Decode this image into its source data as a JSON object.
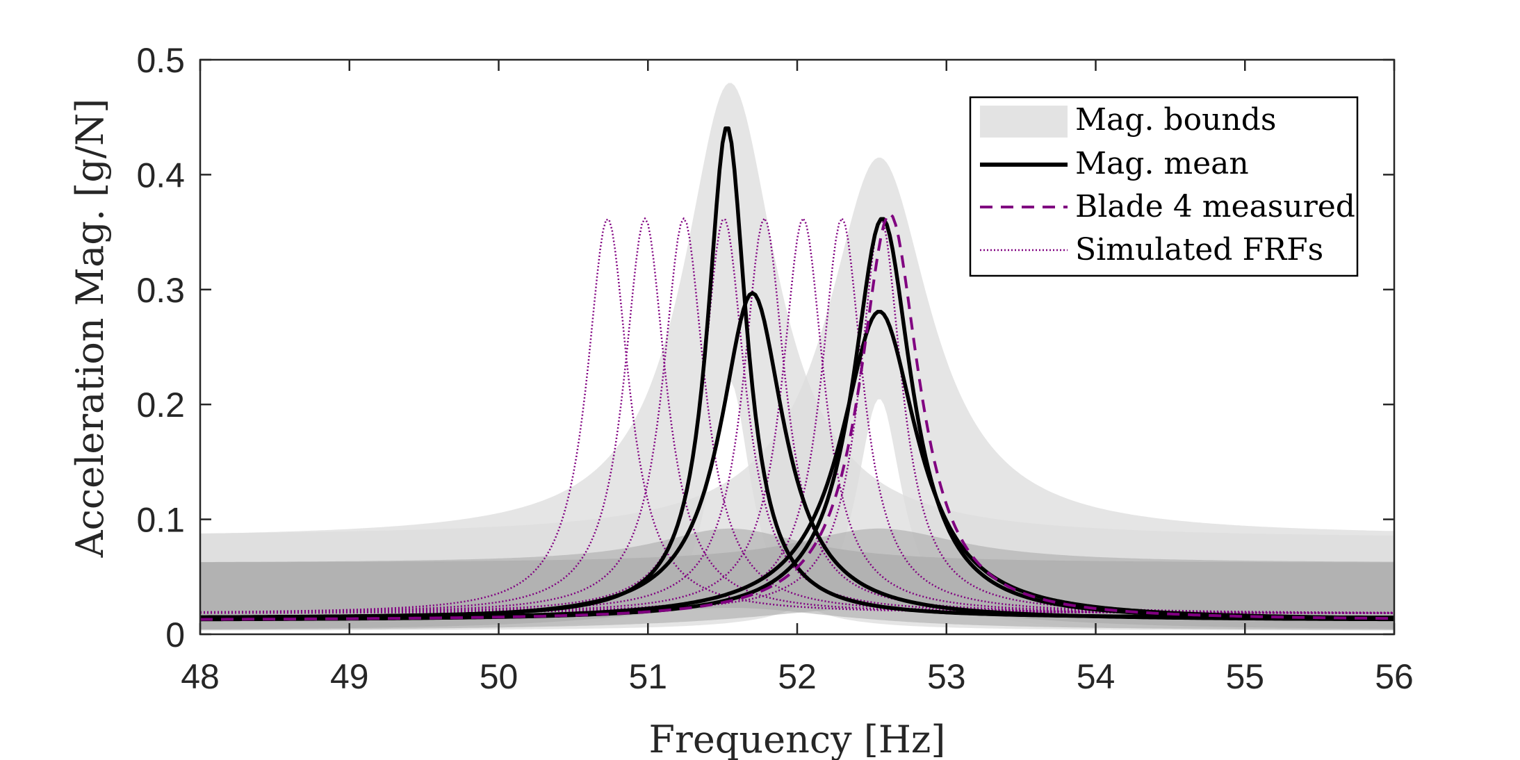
{
  "chart_data": {
    "type": "line",
    "xlabel": "Frequency [Hz]",
    "ylabel": "Acceleration Mag. [g/N]",
    "xlim": [
      48,
      56
    ],
    "ylim": [
      0,
      0.5
    ],
    "xticks": [
      48,
      49,
      50,
      51,
      52,
      53,
      54,
      55,
      56
    ],
    "yticks": [
      0,
      0.1,
      0.2,
      0.3,
      0.4,
      0.5
    ],
    "ytick_labels": [
      "0",
      "0.1",
      "0.2",
      "0.3",
      "0.4",
      "0.5"
    ],
    "legend": {
      "position": "top-right",
      "entries": [
        {
          "label": "Mag. bounds",
          "style": "patch",
          "color": "#d9d9d9"
        },
        {
          "label": "Mag. mean",
          "style": "solid",
          "color": "#000000"
        },
        {
          "label": "Blade 4 measured",
          "style": "dashed",
          "color": "#800080"
        },
        {
          "label": "Simulated FRFs",
          "style": "dotted",
          "color": "#800080"
        }
      ]
    },
    "colors": {
      "bounds_light": "#dcdcdc",
      "bounds_dark": "#a6a6a6",
      "mean": "#000000",
      "measured": "#800080",
      "simulated": "#800080"
    },
    "bounds": [
      {
        "name": "mode 1 outer",
        "lower_floor": 0.003,
        "upper_floor": 0.083,
        "peak_freq": 51.55,
        "upper_peak": 0.48,
        "lower_peak": 0.22,
        "width": 0.38
      },
      {
        "name": "mode 2 outer",
        "lower_floor": 0.003,
        "upper_floor": 0.085,
        "peak_freq": 52.55,
        "upper_peak": 0.415,
        "lower_peak": 0.205,
        "width": 0.42
      }
    ],
    "series": [
      {
        "name": "Mag. mean (mode 1, high)",
        "kind": "mean",
        "f0": 51.53,
        "peak": 0.442,
        "gamma": 0.16,
        "floor": 0.014
      },
      {
        "name": "Mag. mean (mode 1, low)",
        "kind": "mean",
        "f0": 51.7,
        "peak": 0.297,
        "gamma": 0.26,
        "floor": 0.012
      },
      {
        "name": "Mag. mean (mode 2, high)",
        "kind": "mean",
        "f0": 52.57,
        "peak": 0.362,
        "gamma": 0.24,
        "floor": 0.012
      },
      {
        "name": "Mag. mean (mode 2, low)",
        "kind": "mean",
        "f0": 52.55,
        "peak": 0.281,
        "gamma": 0.31,
        "floor": 0.012
      },
      {
        "name": "Blade 4 measured",
        "kind": "measured",
        "f0": 52.62,
        "peak": 0.366,
        "gamma": 0.24,
        "floor": 0.012
      },
      {
        "name": "Simulated FRF 1",
        "kind": "simulated",
        "f0": 50.73,
        "peak": 0.362,
        "gamma": 0.17,
        "floor": 0.018
      },
      {
        "name": "Simulated FRF 2",
        "kind": "simulated",
        "f0": 50.98,
        "peak": 0.362,
        "gamma": 0.17,
        "floor": 0.018
      },
      {
        "name": "Simulated FRF 3",
        "kind": "simulated",
        "f0": 51.24,
        "peak": 0.362,
        "gamma": 0.17,
        "floor": 0.018
      },
      {
        "name": "Simulated FRF 4",
        "kind": "simulated",
        "f0": 51.51,
        "peak": 0.362,
        "gamma": 0.17,
        "floor": 0.018
      },
      {
        "name": "Simulated FRF 5",
        "kind": "simulated",
        "f0": 51.78,
        "peak": 0.362,
        "gamma": 0.17,
        "floor": 0.018
      },
      {
        "name": "Simulated FRF 6",
        "kind": "simulated",
        "f0": 52.04,
        "peak": 0.362,
        "gamma": 0.17,
        "floor": 0.018
      },
      {
        "name": "Simulated FRF 7",
        "kind": "simulated",
        "f0": 52.3,
        "peak": 0.362,
        "gamma": 0.17,
        "floor": 0.018
      },
      {
        "name": "Simulated FRF 8",
        "kind": "simulated",
        "f0": 52.56,
        "peak": 0.362,
        "gamma": 0.17,
        "floor": 0.018
      }
    ]
  }
}
